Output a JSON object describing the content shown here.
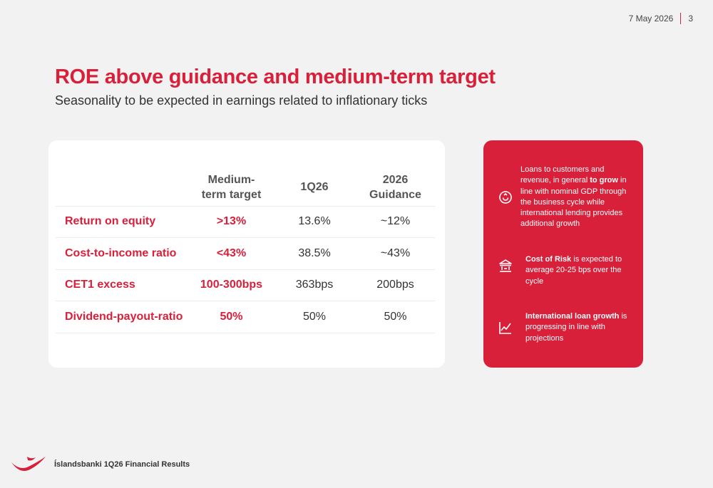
{
  "header": {
    "date": "7 May 2026",
    "page_number": "3"
  },
  "title": "ROE above guidance and medium-term target",
  "subtitle": "Seasonality to be expected in earnings related to inflationary ticks",
  "table": {
    "headers": {
      "target_line1": "Medium-",
      "target_line2": "term target",
      "q": "1Q26",
      "guidance_line1": "2026",
      "guidance_line2": "Guidance"
    },
    "rows": [
      {
        "metric": "Return on equity",
        "target": ">13%",
        "q": "13.6%",
        "guidance": "~12%"
      },
      {
        "metric": "Cost-to-income ratio",
        "target": "<43%",
        "q": "38.5%",
        "guidance": "~43%"
      },
      {
        "metric": "CET1 excess",
        "target": "100-300bps",
        "q": "363bps",
        "guidance": "200bps"
      },
      {
        "metric": "Dividend-payout-ratio",
        "target": "50%",
        "q": "50%",
        "guidance": "50%"
      }
    ]
  },
  "info_panel": {
    "items": [
      {
        "icon": "coin-growth-icon",
        "pre": "Loans to customers and revenue, in general ",
        "bold": "to grow",
        "post": " in line with nominal GDP through the business cycle while international lending provides additional growth"
      },
      {
        "icon": "bank-icon",
        "pre": "",
        "bold": "Cost of Risk",
        "post": " is expected to average 20-25 bps over the cycle"
      },
      {
        "icon": "line-chart-icon",
        "pre": "",
        "bold": "International loan growth",
        "post": " is progressing in line with projections"
      }
    ]
  },
  "colors": {
    "accent": "#d8203a",
    "background": "#f2f2f2",
    "card": "#ffffff"
  },
  "footer": {
    "text": "Íslandsbanki 1Q26 Financial Results"
  }
}
